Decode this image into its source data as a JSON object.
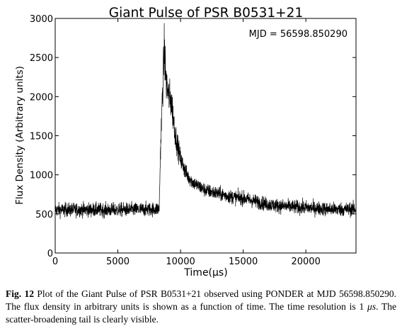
{
  "chart_data": {
    "type": "line",
    "title": "Giant Pulse of PSR B0531+21",
    "xlabel": "Time(μs)",
    "ylabel": "Flux Density (Arbitrary units)",
    "annotation": "MJD = 56598.850290",
    "xlim": [
      0,
      24000
    ],
    "ylim": [
      0,
      3000
    ],
    "xticks": [
      0,
      5000,
      10000,
      15000,
      20000
    ],
    "yticks": [
      0,
      500,
      1000,
      1500,
      2000,
      2500,
      3000
    ],
    "grid": false,
    "series": [
      {
        "color": "#000000",
        "noise_sigma": 45,
        "x": [
          0,
          2000,
          4000,
          6000,
          8000,
          8300,
          8400,
          8550,
          8700,
          8850,
          9000,
          9300,
          9600,
          10000,
          10500,
          11000,
          12000,
          13000,
          14000,
          15000,
          16000,
          17000,
          18000,
          20000,
          22000,
          24000
        ],
        "y": [
          550,
          555,
          550,
          555,
          560,
          570,
          1300,
          2000,
          2600,
          2200,
          2050,
          1900,
          1500,
          1200,
          1000,
          900,
          800,
          760,
          720,
          700,
          660,
          620,
          600,
          580,
          560,
          560
        ]
      }
    ]
  },
  "caption": {
    "fig_label": "Fig. 12",
    "text_parts": [
      " Plot of the Giant Pulse of PSR B0531+21 observed using PONDER at MJD 56598.850290. The flux density in arbitrary units is shown as a function of time. The time resolution is 1 ",
      "μs",
      ". The scatter-broadening tail is clearly visible."
    ]
  }
}
